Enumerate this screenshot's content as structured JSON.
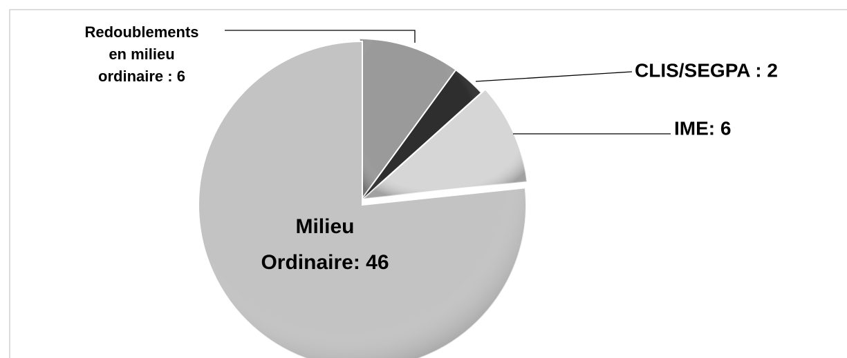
{
  "chart_data": {
    "type": "pie",
    "categories": [
      [
        "Redoublements",
        "en milieu",
        "ordinaire : 6"
      ],
      [
        "CLIS/SEGPA : 2"
      ],
      [
        "IME: 6"
      ],
      [
        "Milieu",
        "Ordinaire: 46"
      ]
    ],
    "values": [
      6,
      2,
      6,
      46
    ],
    "colors": [
      "#9a9a9a",
      "#2e2e2e",
      "#d6d6d6",
      "#c3c3c3"
    ]
  }
}
